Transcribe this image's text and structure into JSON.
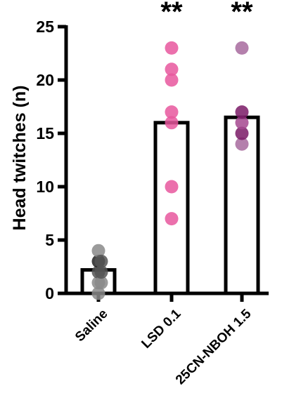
{
  "chart_data": {
    "type": "bar",
    "ylabel": "Head twitches (n)",
    "ylim": [
      0,
      25
    ],
    "yticks": [
      0,
      5,
      10,
      15,
      20,
      25
    ],
    "categories": [
      "Saline",
      "LSD 0.1",
      "25CN-NBOH 1.5"
    ],
    "values": [
      2.2,
      16.0,
      16.5
    ],
    "points": [
      [
        0,
        1,
        2,
        3,
        4,
        1,
        2,
        3
      ],
      [
        7,
        10,
        16,
        17,
        20,
        21,
        23
      ],
      [
        14,
        15,
        16,
        17,
        23
      ]
    ],
    "point_colors": [
      [
        "#8a8a8a",
        "#8a8a8a",
        "#555555",
        "#222222",
        "#8a8a8a",
        "#8a8a8a",
        "#555555",
        "#555555"
      ],
      [
        "#e8579e",
        "#e8579e",
        "#e8579e",
        "#e8579e",
        "#e8579e",
        "#e8579e",
        "#e8579e"
      ],
      [
        "#a76a9e",
        "#7a1a66",
        "#a5488f",
        "#7a1a66",
        "#a76a9e"
      ]
    ],
    "significance": [
      "",
      "**",
      "**"
    ],
    "bar_fill": "#ffffff",
    "bar_stroke": "#000000",
    "grid": false
  }
}
